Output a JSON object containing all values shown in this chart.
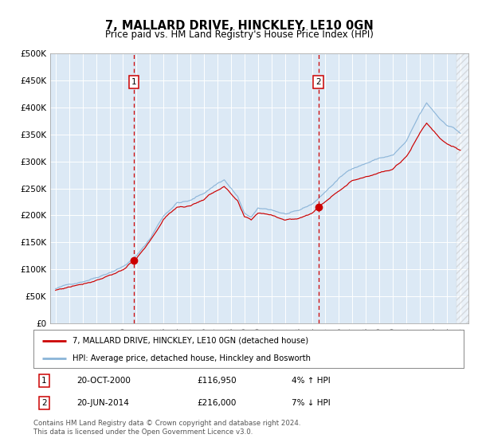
{
  "title": "7, MALLARD DRIVE, HINCKLEY, LE10 0GN",
  "subtitle": "Price paid vs. HM Land Registry's House Price Index (HPI)",
  "ylabel_ticks": [
    "£0",
    "£50K",
    "£100K",
    "£150K",
    "£200K",
    "£250K",
    "£300K",
    "£350K",
    "£400K",
    "£450K",
    "£500K"
  ],
  "ytick_vals": [
    0,
    50000,
    100000,
    150000,
    200000,
    250000,
    300000,
    350000,
    400000,
    450000,
    500000
  ],
  "ylim": [
    0,
    500000
  ],
  "xlim_start": 1994.6,
  "xlim_end": 2025.6,
  "bg_color": "#dce9f5",
  "hpi_line_color": "#8ab4d8",
  "price_line_color": "#cc0000",
  "marker_color": "#cc0000",
  "vline_color": "#cc0000",
  "grid_color": "#ffffff",
  "sale1_date": 2000.8,
  "sale1_price": 116950,
  "sale1_label": "1",
  "sale1_date_str": "20-OCT-2000",
  "sale1_price_str": "£116,950",
  "sale1_hpi_str": "4% ↑ HPI",
  "sale2_date": 2014.47,
  "sale2_price": 216000,
  "sale2_label": "2",
  "sale2_date_str": "20-JUN-2014",
  "sale2_price_str": "£216,000",
  "sale2_hpi_str": "7% ↓ HPI",
  "legend1_label": "7, MALLARD DRIVE, HINCKLEY, LE10 0GN (detached house)",
  "legend2_label": "HPI: Average price, detached house, Hinckley and Bosworth",
  "footer1": "Contains HM Land Registry data © Crown copyright and database right 2024.",
  "footer2": "This data is licensed under the Open Government Licence v3.0."
}
